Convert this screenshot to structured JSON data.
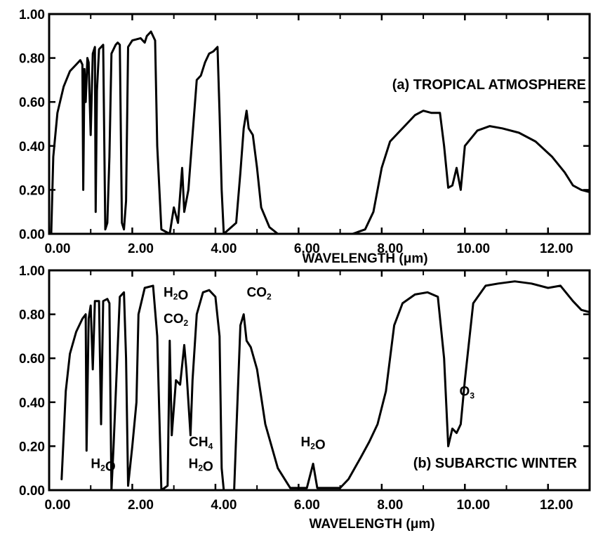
{
  "chart_data": [
    {
      "type": "line",
      "title": "(a) TROPICAL ATMOSPHERE",
      "xlabel": "WAVELENGTH",
      "xunit": "(μm)",
      "ylabel": "",
      "xlim": [
        0,
        13
      ],
      "ylim": [
        0,
        1
      ],
      "grid": false,
      "xticks": [
        "0.00",
        "2.00",
        "4.00",
        "6.00",
        "8.00",
        "10.00",
        "12.00"
      ],
      "yticks": [
        "0.00",
        "0.20",
        "0.40",
        "0.60",
        "0.80",
        "1.00"
      ],
      "series": [
        {
          "values": [
            [
              0.05,
              0
            ],
            [
              0.1,
              0.35
            ],
            [
              0.2,
              0.55
            ],
            [
              0.35,
              0.67
            ],
            [
              0.5,
              0.74
            ],
            [
              0.65,
              0.77
            ],
            [
              0.75,
              0.79
            ],
            [
              0.8,
              0.77
            ],
            [
              0.82,
              0.2
            ],
            [
              0.85,
              0.75
            ],
            [
              0.88,
              0.6
            ],
            [
              0.92,
              0.8
            ],
            [
              0.95,
              0.78
            ],
            [
              1.0,
              0.45
            ],
            [
              1.05,
              0.82
            ],
            [
              1.1,
              0.85
            ],
            [
              1.12,
              0.1
            ],
            [
              1.15,
              0.65
            ],
            [
              1.2,
              0.84
            ],
            [
              1.3,
              0.86
            ],
            [
              1.35,
              0.02
            ],
            [
              1.4,
              0.05
            ],
            [
              1.45,
              0.35
            ],
            [
              1.5,
              0.82
            ],
            [
              1.6,
              0.86
            ],
            [
              1.65,
              0.87
            ],
            [
              1.7,
              0.86
            ],
            [
              1.75,
              0.05
            ],
            [
              1.8,
              0.02
            ],
            [
              1.85,
              0.15
            ],
            [
              1.9,
              0.85
            ],
            [
              2.0,
              0.88
            ],
            [
              2.2,
              0.89
            ],
            [
              2.3,
              0.87
            ],
            [
              2.35,
              0.9
            ],
            [
              2.45,
              0.92
            ],
            [
              2.55,
              0.88
            ],
            [
              2.6,
              0.4
            ],
            [
              2.7,
              0.02
            ],
            [
              2.9,
              0
            ],
            [
              3.0,
              0.12
            ],
            [
              3.1,
              0.05
            ],
            [
              3.2,
              0.3
            ],
            [
              3.25,
              0.1
            ],
            [
              3.35,
              0.2
            ],
            [
              3.45,
              0.45
            ],
            [
              3.55,
              0.7
            ],
            [
              3.65,
              0.72
            ],
            [
              3.75,
              0.78
            ],
            [
              3.85,
              0.82
            ],
            [
              3.95,
              0.83
            ],
            [
              4.05,
              0.85
            ],
            [
              4.1,
              0.55
            ],
            [
              4.15,
              0.2
            ],
            [
              4.2,
              0
            ],
            [
              4.5,
              0.05
            ],
            [
              4.6,
              0.28
            ],
            [
              4.68,
              0.48
            ],
            [
              4.75,
              0.56
            ],
            [
              4.8,
              0.48
            ],
            [
              4.9,
              0.45
            ],
            [
              5.0,
              0.3
            ],
            [
              5.1,
              0.12
            ],
            [
              5.3,
              0.03
            ],
            [
              5.5,
              0
            ],
            [
              7.3,
              0
            ],
            [
              7.6,
              0.02
            ],
            [
              7.8,
              0.1
            ],
            [
              8.0,
              0.3
            ],
            [
              8.2,
              0.42
            ],
            [
              8.4,
              0.46
            ],
            [
              8.6,
              0.5
            ],
            [
              8.8,
              0.54
            ],
            [
              9.0,
              0.56
            ],
            [
              9.2,
              0.55
            ],
            [
              9.4,
              0.55
            ],
            [
              9.5,
              0.4
            ],
            [
              9.6,
              0.21
            ],
            [
              9.7,
              0.22
            ],
            [
              9.8,
              0.3
            ],
            [
              9.9,
              0.2
            ],
            [
              10.0,
              0.4
            ],
            [
              10.3,
              0.47
            ],
            [
              10.6,
              0.49
            ],
            [
              10.9,
              0.48
            ],
            [
              11.3,
              0.46
            ],
            [
              11.7,
              0.42
            ],
            [
              12.1,
              0.35
            ],
            [
              12.4,
              0.28
            ],
            [
              12.6,
              0.22
            ],
            [
              12.8,
              0.2
            ],
            [
              13.0,
              0.19
            ]
          ]
        }
      ]
    },
    {
      "type": "line",
      "title": "(b) SUBARCTIC WINTER",
      "xlabel": "WAVELENGTH",
      "xunit": "(μm)",
      "ylabel": "",
      "xlim": [
        0,
        13
      ],
      "ylim": [
        0,
        1
      ],
      "grid": false,
      "xticks": [
        "0.00",
        "2.00",
        "4.00",
        "6.00",
        "8.00",
        "10.00",
        "12.00"
      ],
      "yticks": [
        "0.00",
        "0.20",
        "0.40",
        "0.60",
        "0.80",
        "1.00"
      ],
      "series": [
        {
          "values": [
            [
              0.3,
              0.05
            ],
            [
              0.4,
              0.45
            ],
            [
              0.5,
              0.62
            ],
            [
              0.65,
              0.72
            ],
            [
              0.8,
              0.78
            ],
            [
              0.88,
              0.8
            ],
            [
              0.9,
              0.18
            ],
            [
              0.95,
              0.78
            ],
            [
              1.0,
              0.84
            ],
            [
              1.05,
              0.55
            ],
            [
              1.1,
              0.86
            ],
            [
              1.2,
              0.86
            ],
            [
              1.25,
              0.3
            ],
            [
              1.3,
              0.86
            ],
            [
              1.4,
              0.87
            ],
            [
              1.45,
              0.85
            ],
            [
              1.5,
              0
            ],
            [
              1.55,
              0.2
            ],
            [
              1.7,
              0.88
            ],
            [
              1.8,
              0.9
            ],
            [
              1.85,
              0.6
            ],
            [
              1.9,
              0.02
            ],
            [
              2.0,
              0.2
            ],
            [
              2.1,
              0.4
            ],
            [
              2.15,
              0.8
            ],
            [
              2.3,
              0.92
            ],
            [
              2.5,
              0.93
            ],
            [
              2.6,
              0.7
            ],
            [
              2.7,
              0
            ],
            [
              2.85,
              0.02
            ],
            [
              2.9,
              0.68
            ],
            [
              2.95,
              0.25
            ],
            [
              3.05,
              0.5
            ],
            [
              3.15,
              0.48
            ],
            [
              3.25,
              0.66
            ],
            [
              3.3,
              0.55
            ],
            [
              3.4,
              0.25
            ],
            [
              3.45,
              0.5
            ],
            [
              3.55,
              0.8
            ],
            [
              3.7,
              0.9
            ],
            [
              3.85,
              0.91
            ],
            [
              4.0,
              0.88
            ],
            [
              4.1,
              0.7
            ],
            [
              4.15,
              0.1
            ],
            [
              4.2,
              0
            ],
            [
              4.45,
              0
            ],
            [
              4.5,
              0.25
            ],
            [
              4.6,
              0.75
            ],
            [
              4.68,
              0.8
            ],
            [
              4.75,
              0.68
            ],
            [
              4.85,
              0.65
            ],
            [
              5.0,
              0.55
            ],
            [
              5.2,
              0.3
            ],
            [
              5.5,
              0.1
            ],
            [
              5.8,
              0.01
            ],
            [
              6.2,
              0.01
            ],
            [
              6.35,
              0.12
            ],
            [
              6.45,
              0.01
            ],
            [
              7.0,
              0.01
            ],
            [
              7.2,
              0.05
            ],
            [
              7.5,
              0.15
            ],
            [
              7.7,
              0.22
            ],
            [
              7.9,
              0.3
            ],
            [
              8.1,
              0.45
            ],
            [
              8.3,
              0.75
            ],
            [
              8.5,
              0.85
            ],
            [
              8.8,
              0.89
            ],
            [
              9.1,
              0.9
            ],
            [
              9.35,
              0.88
            ],
            [
              9.5,
              0.6
            ],
            [
              9.6,
              0.2
            ],
            [
              9.7,
              0.28
            ],
            [
              9.8,
              0.26
            ],
            [
              9.9,
              0.3
            ],
            [
              10.0,
              0.5
            ],
            [
              10.2,
              0.85
            ],
            [
              10.5,
              0.93
            ],
            [
              10.8,
              0.94
            ],
            [
              11.2,
              0.95
            ],
            [
              11.6,
              0.94
            ],
            [
              12.0,
              0.92
            ],
            [
              12.3,
              0.93
            ],
            [
              12.6,
              0.86
            ],
            [
              12.8,
              0.82
            ],
            [
              13.0,
              0.81
            ]
          ]
        }
      ],
      "annotations": [
        {
          "text": "H₂O",
          "x": 1.3,
          "y": 0.1
        },
        {
          "text": "H₂O",
          "x": 3.05,
          "y": 0.88
        },
        {
          "text": "CO₂",
          "x": 3.05,
          "y": 0.76
        },
        {
          "text": "CO₂",
          "x": 5.05,
          "y": 0.88
        },
        {
          "text": "CH₄",
          "x": 3.65,
          "y": 0.2
        },
        {
          "text": "H₂O",
          "x": 3.65,
          "y": 0.1
        },
        {
          "text": "H₂O",
          "x": 6.35,
          "y": 0.2
        },
        {
          "text": "O₃",
          "x": 10.05,
          "y": 0.43
        }
      ]
    }
  ]
}
